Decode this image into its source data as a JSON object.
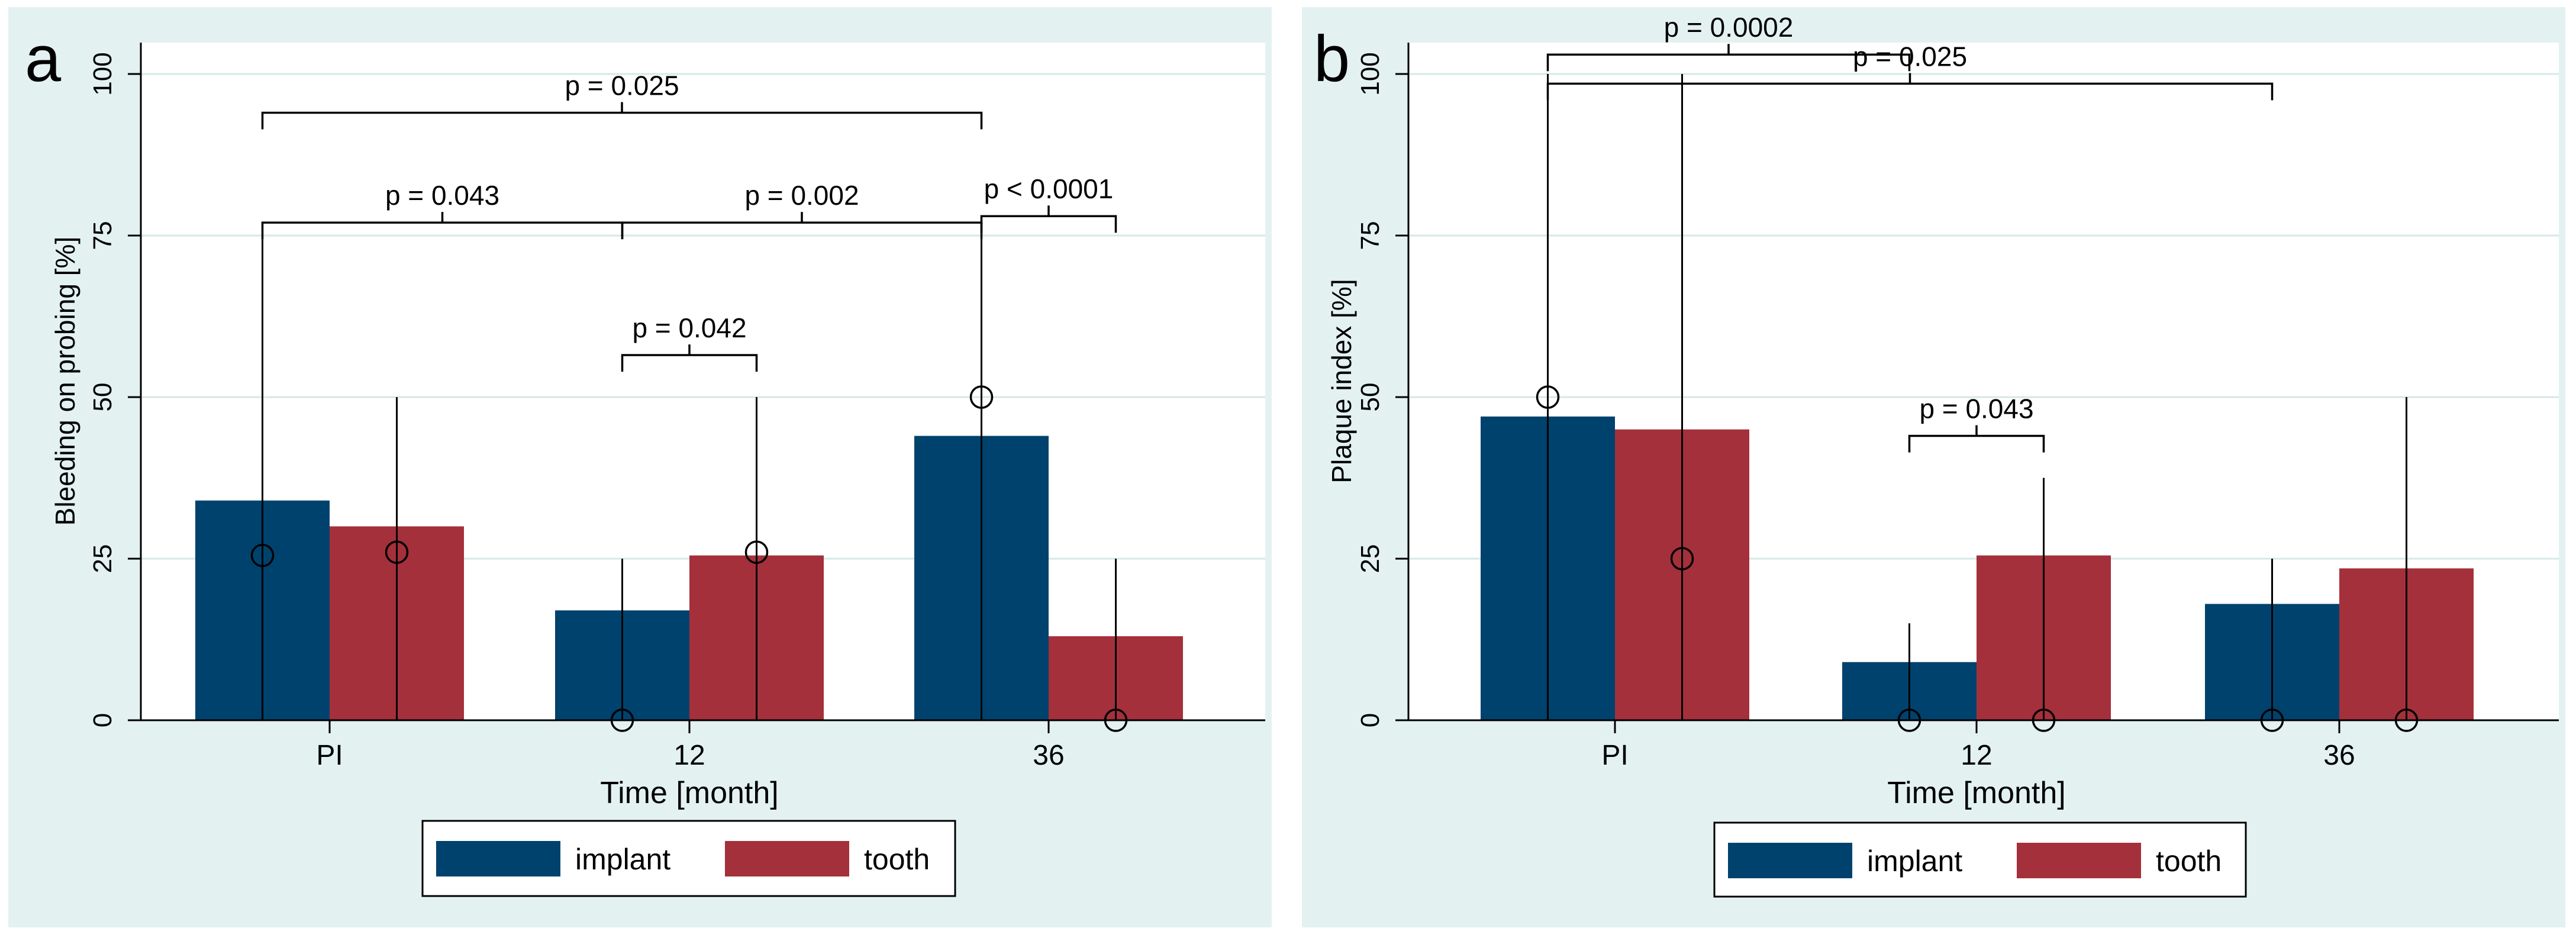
{
  "panels": [
    {
      "letter": "a",
      "chart_data": {
        "type": "bar",
        "xlabel": "Time [month]",
        "ylabel": "Bleeding on probing [%]",
        "categories": [
          "PI",
          "12",
          "36"
        ],
        "ylim": [
          0,
          100
        ],
        "yticks": [
          "0",
          "25",
          "50",
          "75",
          "100"
        ],
        "series": [
          {
            "name": "implant",
            "color": "#00426e",
            "values": [
              34,
              17,
              44
            ]
          },
          {
            "name": "tooth",
            "color": "#a4303b",
            "values": [
              30,
              25.5,
              13
            ]
          }
        ],
        "medians": {
          "implant": [
            25.5,
            0,
            50
          ],
          "tooth": [
            26,
            26,
            0
          ]
        },
        "ranges": {
          "implant": [
            [
              0,
              74.5
            ],
            [
              0,
              25
            ],
            [
              0,
              75
            ]
          ],
          "tooth": [
            [
              0,
              50
            ],
            [
              0,
              50
            ],
            [
              0,
              25
            ]
          ]
        },
        "annotations": [
          {
            "text": "p = 0.025",
            "from": {
              "group": 0,
              "series": 0
            },
            "to": {
              "group": 2,
              "series": 0
            },
            "y": 94
          },
          {
            "text": "p = 0.043",
            "from": {
              "group": 0,
              "series": 0
            },
            "to": {
              "group": 1,
              "series": 0
            },
            "y": 77
          },
          {
            "text": "p = 0.002",
            "from": {
              "group": 1,
              "series": 0
            },
            "to": {
              "group": 2,
              "series": 0
            },
            "y": 77
          },
          {
            "text": "p < 0.0001",
            "from": {
              "group": 2,
              "series": 0
            },
            "to": {
              "group": 2,
              "series": 1
            },
            "y": 78
          },
          {
            "text": "p = 0.042",
            "from": {
              "group": 1,
              "series": 0
            },
            "to": {
              "group": 1,
              "series": 1
            },
            "y": 56.5
          }
        ],
        "legend": {
          "position": "bottom",
          "entries": [
            "implant",
            "tooth"
          ]
        }
      }
    },
    {
      "letter": "b",
      "chart_data": {
        "type": "bar",
        "xlabel": "Time [month]",
        "ylabel": "Plaque index [%]",
        "categories": [
          "PI",
          "12",
          "36"
        ],
        "ylim": [
          0,
          100
        ],
        "yticks": [
          "0",
          "25",
          "50",
          "75",
          "100"
        ],
        "series": [
          {
            "name": "implant",
            "color": "#00426e",
            "values": [
              47,
              9,
              18
            ]
          },
          {
            "name": "tooth",
            "color": "#a4303b",
            "values": [
              45,
              25.5,
              23.5
            ]
          }
        ],
        "medians": {
          "implant": [
            50,
            0,
            0
          ],
          "tooth": [
            25,
            0,
            0
          ]
        },
        "ranges": {
          "implant": [
            [
              0,
              100
            ],
            [
              0,
              15
            ],
            [
              0,
              25
            ]
          ],
          "tooth": [
            [
              0,
              100
            ],
            [
              0,
              37.5
            ],
            [
              0,
              50
            ]
          ]
        },
        "annotations": [
          {
            "text": "p = 0.0002",
            "from": {
              "group": 0,
              "series": 0
            },
            "to": {
              "group": 1,
              "series": 0
            },
            "y": 103
          },
          {
            "text": "p = 0.025",
            "from": {
              "group": 0,
              "series": 0
            },
            "to": {
              "group": 2,
              "series": 0
            },
            "y": 98.5
          },
          {
            "text": "p = 0.043",
            "from": {
              "group": 1,
              "series": 0
            },
            "to": {
              "group": 1,
              "series": 1
            },
            "y": 44
          }
        ],
        "legend": {
          "position": "bottom",
          "entries": [
            "implant",
            "tooth"
          ]
        }
      }
    }
  ]
}
